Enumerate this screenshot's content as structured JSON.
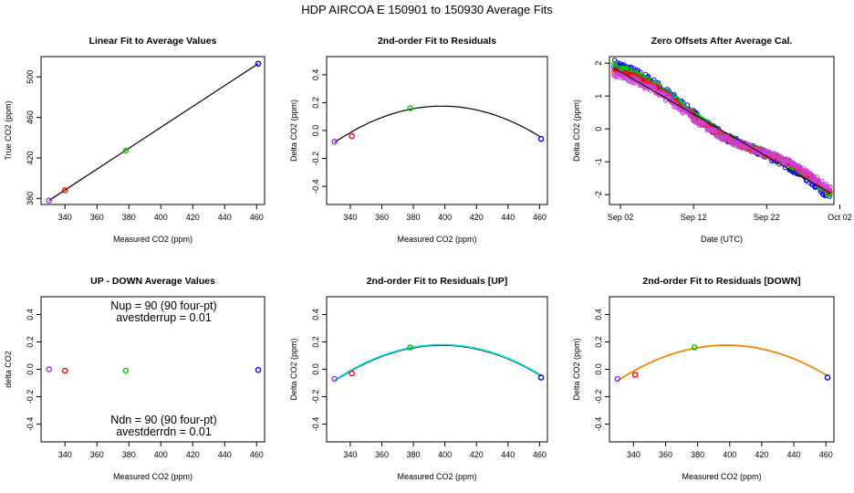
{
  "page_title": "HDP   AIRCOA E   150901 to 150930   Average Fits",
  "colors": {
    "purple": "#9b30ff",
    "red": "#ff0000",
    "green": "#00cc00",
    "blue": "#0000ff",
    "black": "#000000",
    "cyan": "#00e5ee",
    "orange": "#ff8c00",
    "magenta": "#cc44dd"
  },
  "chart_data": [
    {
      "id": "p1",
      "type": "scatter",
      "title": "Linear Fit to Average Values",
      "xlabel": "Measured CO2 (ppm)",
      "ylabel": "True CO2 (ppm)",
      "xlim": [
        325,
        465
      ],
      "ylim": [
        374,
        520
      ],
      "xticks": [
        340,
        360,
        380,
        400,
        420,
        440,
        460
      ],
      "yticks": [
        380,
        420,
        460,
        500
      ],
      "points": [
        {
          "x": 330,
          "y": 378,
          "color": "purple"
        },
        {
          "x": 340,
          "y": 388,
          "color": "red"
        },
        {
          "x": 378,
          "y": 427,
          "color": "green"
        },
        {
          "x": 461,
          "y": 513,
          "color": "blue"
        }
      ],
      "fit_line": {
        "x": [
          330,
          461
        ],
        "y": [
          378,
          513
        ],
        "color": "black"
      }
    },
    {
      "id": "p2",
      "type": "scatter",
      "title": "2nd-order Fit to Residuals",
      "xlabel": "Measured CO2 (ppm)",
      "ylabel": "Delta CO2 (ppm)",
      "xlim": [
        325,
        465
      ],
      "ylim": [
        -0.53,
        0.53
      ],
      "xticks": [
        340,
        360,
        380,
        400,
        420,
        440,
        460
      ],
      "yticks": [
        -0.4,
        -0.2,
        0.0,
        0.2,
        0.4
      ],
      "points": [
        {
          "x": 330,
          "y": -0.08,
          "color": "purple"
        },
        {
          "x": 341,
          "y": -0.04,
          "color": "red"
        },
        {
          "x": 378,
          "y": 0.16,
          "color": "green"
        },
        {
          "x": 461,
          "y": -0.06,
          "color": "blue"
        }
      ],
      "curves": [
        {
          "vertex_x": 398,
          "vertex_y": 0.175,
          "a": -5.63e-05,
          "from": 330,
          "to": 461,
          "color": "black"
        }
      ]
    },
    {
      "id": "p3",
      "type": "scatter",
      "title": "Zero Offsets After Average Cal.",
      "xlabel": "Date (UTC)",
      "ylabel": "Delta CO2 (ppm)",
      "xlim": [
        0,
        30.7
      ],
      "ylim": [
        -2.3,
        2.2
      ],
      "xticks": [
        1.5,
        11.5,
        21.5,
        31.5
      ],
      "xtick_labels": [
        "Sep 02",
        "Sep 12",
        "Sep 22",
        "Oct 02"
      ],
      "yticks": [
        -2,
        -1,
        0,
        1,
        2
      ],
      "series": [
        {
          "name": "blue",
          "color": "blue",
          "start": [
            0.6,
            2.0
          ],
          "end": [
            30.2,
            -2.05
          ],
          "noise": 0.12
        },
        {
          "name": "green",
          "color": "green",
          "start": [
            0.6,
            1.9
          ],
          "end": [
            30.2,
            -1.95
          ],
          "noise": 0.1
        },
        {
          "name": "red",
          "color": "red",
          "start": [
            0.6,
            1.8
          ],
          "end": [
            30.2,
            -1.9
          ],
          "noise": 0.08
        },
        {
          "name": "magenta",
          "color": "magenta",
          "start": [
            0.6,
            1.7
          ],
          "end": [
            30.2,
            -1.85
          ],
          "noise": 0.1
        }
      ],
      "trend": {
        "x": [
          0.6,
          30.2
        ],
        "y": [
          1.85,
          -1.95
        ],
        "color": "black"
      }
    },
    {
      "id": "p4",
      "type": "scatter",
      "title": "UP - DOWN Average Values",
      "xlabel": "Measured CO2 (ppm)",
      "ylabel": "delta CO2",
      "xlim": [
        325,
        465
      ],
      "ylim": [
        -0.53,
        0.53
      ],
      "xticks": [
        340,
        360,
        380,
        400,
        420,
        440,
        460
      ],
      "yticks": [
        -0.4,
        -0.2,
        0.0,
        0.2,
        0.4
      ],
      "points": [
        {
          "x": 330,
          "y": 0.0,
          "color": "purple"
        },
        {
          "x": 340,
          "y": -0.01,
          "color": "red"
        },
        {
          "x": 378,
          "y": -0.01,
          "color": "green"
        },
        {
          "x": 461,
          "y": -0.005,
          "color": "blue"
        }
      ],
      "annotations": {
        "nup": "Nup = 90 (90 four-pt)",
        "avestderrup": "avestderrup =  0.01",
        "ndn": "Ndn = 90 (90 four-pt)",
        "avestderrdn": "avestderrdn =  0.01"
      }
    },
    {
      "id": "p5",
      "type": "scatter",
      "title": "2nd-order Fit to Residuals [UP]",
      "xlabel": "Measured CO2 (ppm)",
      "ylabel": "Delta CO2 (ppm)",
      "xlim": [
        325,
        465
      ],
      "ylim": [
        -0.53,
        0.53
      ],
      "xticks": [
        340,
        360,
        380,
        400,
        420,
        440,
        460
      ],
      "yticks": [
        -0.4,
        -0.2,
        0.0,
        0.2,
        0.4
      ],
      "points": [
        {
          "x": 330,
          "y": -0.07,
          "color": "purple"
        },
        {
          "x": 341,
          "y": -0.03,
          "color": "red"
        },
        {
          "x": 378,
          "y": 0.16,
          "color": "green"
        },
        {
          "x": 461,
          "y": -0.06,
          "color": "blue"
        }
      ],
      "curves": [
        {
          "vertex_x": 398,
          "vertex_y": 0.175,
          "a": -5.63e-05,
          "from": 330,
          "to": 461,
          "color": "black"
        },
        {
          "vertex_x": 398,
          "vertex_y": 0.18,
          "a": -5.63e-05,
          "from": 330,
          "to": 461,
          "color": "cyan"
        }
      ]
    },
    {
      "id": "p6",
      "type": "scatter",
      "title": "2nd-order Fit to Residuals [DOWN]",
      "xlabel": "Measured CO2 (ppm)",
      "ylabel": "Delta CO2 (ppm)",
      "xlim": [
        325,
        465
      ],
      "ylim": [
        -0.53,
        0.53
      ],
      "xticks": [
        340,
        360,
        380,
        400,
        420,
        440,
        460
      ],
      "yticks": [
        -0.4,
        -0.2,
        0.0,
        0.2,
        0.4
      ],
      "points": [
        {
          "x": 330,
          "y": -0.07,
          "color": "purple"
        },
        {
          "x": 341,
          "y": -0.04,
          "color": "red"
        },
        {
          "x": 378,
          "y": 0.16,
          "color": "green"
        },
        {
          "x": 461,
          "y": -0.06,
          "color": "blue"
        }
      ],
      "curves": [
        {
          "vertex_x": 398,
          "vertex_y": 0.175,
          "a": -5.63e-05,
          "from": 330,
          "to": 461,
          "color": "black"
        },
        {
          "vertex_x": 398,
          "vertex_y": 0.177,
          "a": -5.63e-05,
          "from": 330,
          "to": 461,
          "color": "orange"
        }
      ]
    }
  ]
}
